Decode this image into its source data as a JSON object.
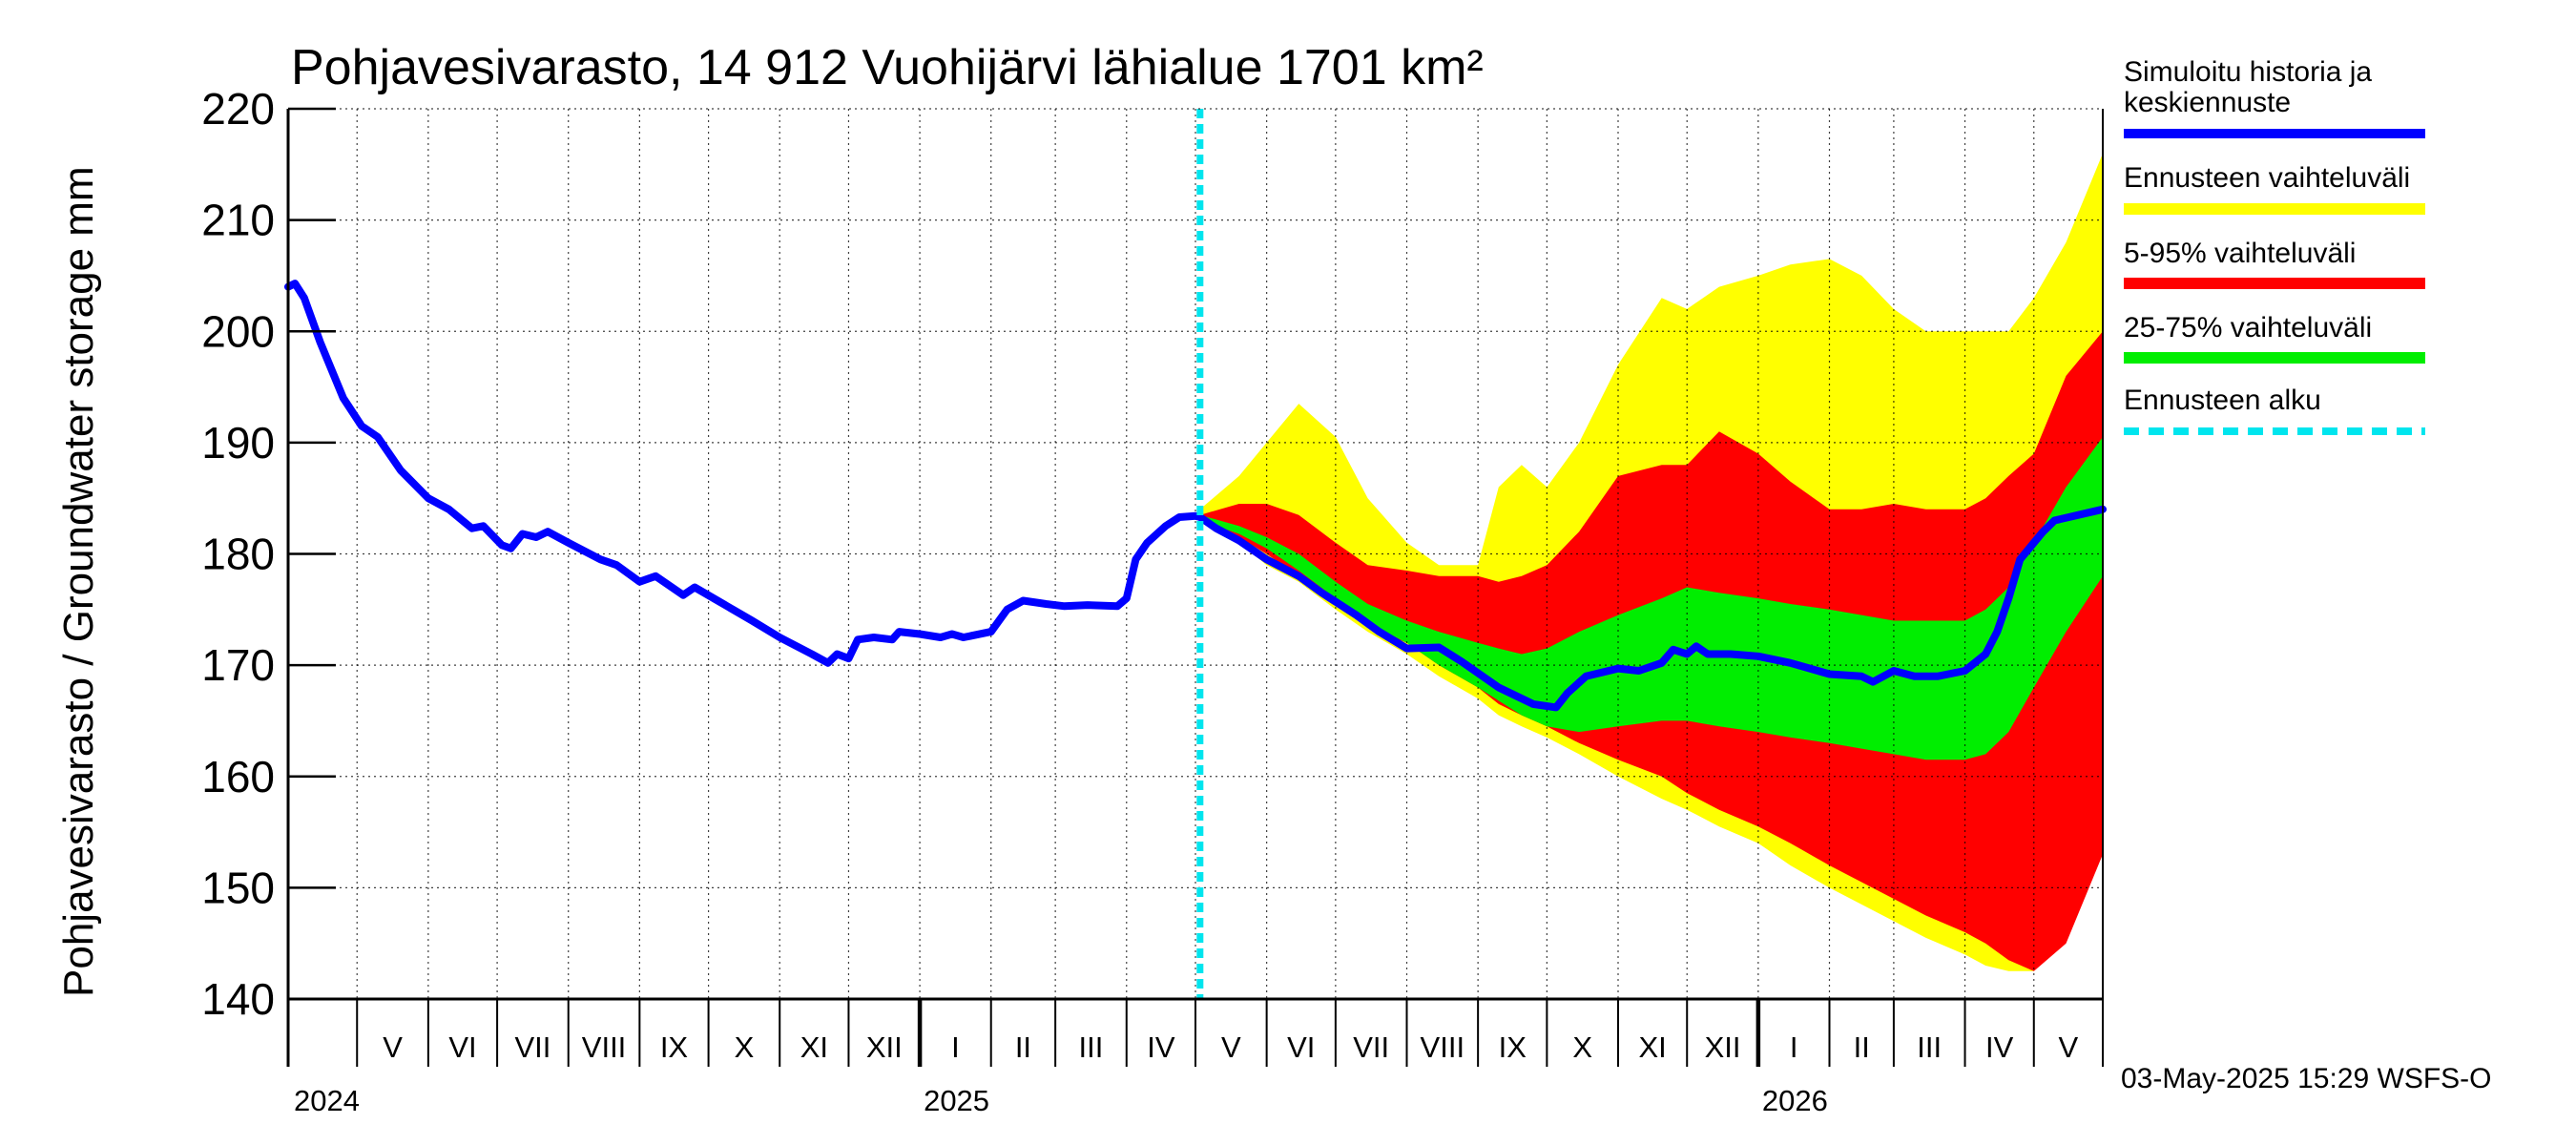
{
  "chart_data": {
    "type": "area",
    "title": "Pohjavesivarasto, 14 912 Vuohijärvi lähialue 1701 km²",
    "ylabel": "Pohjavesivarasto / Groundwater storage   mm",
    "ylim": [
      140,
      220
    ],
    "yticks": [
      "140",
      "150",
      "160",
      "170",
      "180",
      "190",
      "200",
      "210",
      "220"
    ],
    "x_start": "2024-04-01",
    "x_end": "2026-05-31",
    "grid": true,
    "legend_position": "right",
    "months": [
      {
        "label": "V",
        "start": "2024-05-01"
      },
      {
        "label": "VI",
        "start": "2024-06-01"
      },
      {
        "label": "VII",
        "start": "2024-07-01"
      },
      {
        "label": "VIII",
        "start": "2024-08-01"
      },
      {
        "label": "IX",
        "start": "2024-09-01"
      },
      {
        "label": "X",
        "start": "2024-10-01"
      },
      {
        "label": "XI",
        "start": "2024-11-01"
      },
      {
        "label": "XII",
        "start": "2024-12-01"
      },
      {
        "label": "I",
        "start": "2025-01-01"
      },
      {
        "label": "II",
        "start": "2025-02-01"
      },
      {
        "label": "III",
        "start": "2025-03-01"
      },
      {
        "label": "IV",
        "start": "2025-04-01"
      },
      {
        "label": "V",
        "start": "2025-05-01"
      },
      {
        "label": "VI",
        "start": "2025-06-01"
      },
      {
        "label": "VII",
        "start": "2025-07-01"
      },
      {
        "label": "VIII",
        "start": "2025-08-01"
      },
      {
        "label": "IX",
        "start": "2025-09-01"
      },
      {
        "label": "X",
        "start": "2025-10-01"
      },
      {
        "label": "XI",
        "start": "2025-11-01"
      },
      {
        "label": "XII",
        "start": "2025-12-01"
      },
      {
        "label": "I",
        "start": "2026-01-01"
      },
      {
        "label": "II",
        "start": "2026-02-01"
      },
      {
        "label": "III",
        "start": "2026-03-01"
      },
      {
        "label": "IV",
        "start": "2026-04-01"
      },
      {
        "label": "V",
        "start": "2026-05-01"
      }
    ],
    "years": [
      {
        "label": "2024",
        "date": "2024-05-01"
      },
      {
        "label": "2025",
        "date": "2025-01-01"
      },
      {
        "label": "2026",
        "date": "2026-01-01"
      }
    ],
    "forecast_start": "2025-05-03",
    "series": [
      {
        "name": "Simuloitu historia ja keskiennuste",
        "color": "#0000ff",
        "points": [
          [
            "2024-04-01",
            204.0
          ],
          [
            "2024-04-04",
            204.3
          ],
          [
            "2024-04-08",
            203.0
          ],
          [
            "2024-04-15",
            199.0
          ],
          [
            "2024-04-25",
            194.0
          ],
          [
            "2024-05-03",
            191.5
          ],
          [
            "2024-05-10",
            190.5
          ],
          [
            "2024-05-20",
            187.5
          ],
          [
            "2024-06-01",
            185.0
          ],
          [
            "2024-06-10",
            184.0
          ],
          [
            "2024-06-20",
            182.3
          ],
          [
            "2024-06-25",
            182.5
          ],
          [
            "2024-07-03",
            180.8
          ],
          [
            "2024-07-07",
            180.5
          ],
          [
            "2024-07-12",
            181.8
          ],
          [
            "2024-07-18",
            181.5
          ],
          [
            "2024-07-23",
            182.0
          ],
          [
            "2024-08-01",
            181.0
          ],
          [
            "2024-08-15",
            179.5
          ],
          [
            "2024-08-22",
            179.0
          ],
          [
            "2024-09-01",
            177.5
          ],
          [
            "2024-09-08",
            178.0
          ],
          [
            "2024-09-20",
            176.3
          ],
          [
            "2024-09-25",
            177.0
          ],
          [
            "2024-10-05",
            175.8
          ],
          [
            "2024-10-20",
            174.0
          ],
          [
            "2024-11-01",
            172.5
          ],
          [
            "2024-11-15",
            171.0
          ],
          [
            "2024-11-22",
            170.2
          ],
          [
            "2024-11-26",
            171.0
          ],
          [
            "2024-12-01",
            170.6
          ],
          [
            "2024-12-05",
            172.3
          ],
          [
            "2024-12-12",
            172.5
          ],
          [
            "2024-12-20",
            172.3
          ],
          [
            "2024-12-23",
            173.0
          ],
          [
            "2025-01-01",
            172.8
          ],
          [
            "2025-01-10",
            172.5
          ],
          [
            "2025-01-15",
            172.8
          ],
          [
            "2025-01-20",
            172.5
          ],
          [
            "2025-02-01",
            173.0
          ],
          [
            "2025-02-08",
            175.0
          ],
          [
            "2025-02-15",
            175.8
          ],
          [
            "2025-02-25",
            175.5
          ],
          [
            "2025-03-05",
            175.3
          ],
          [
            "2025-03-15",
            175.4
          ],
          [
            "2025-03-28",
            175.3
          ],
          [
            "2025-04-01",
            176.0
          ],
          [
            "2025-04-05",
            179.5
          ],
          [
            "2025-04-10",
            181.0
          ],
          [
            "2025-04-18",
            182.5
          ],
          [
            "2025-04-24",
            183.3
          ],
          [
            "2025-05-01",
            183.4
          ],
          [
            "2025-05-03",
            183.3
          ],
          [
            "2025-05-10",
            182.3
          ],
          [
            "2025-05-20",
            181.2
          ],
          [
            "2025-06-01",
            179.5
          ],
          [
            "2025-06-15",
            178.0
          ],
          [
            "2025-06-25",
            176.5
          ],
          [
            "2025-07-10",
            174.5
          ],
          [
            "2025-07-20",
            173.0
          ],
          [
            "2025-08-01",
            171.5
          ],
          [
            "2025-08-15",
            171.6
          ],
          [
            "2025-08-25",
            170.3
          ],
          [
            "2025-09-10",
            168.0
          ],
          [
            "2025-09-25",
            166.5
          ],
          [
            "2025-10-05",
            166.2
          ],
          [
            "2025-10-10",
            167.5
          ],
          [
            "2025-10-18",
            169.0
          ],
          [
            "2025-11-01",
            169.7
          ],
          [
            "2025-11-10",
            169.5
          ],
          [
            "2025-11-20",
            170.2
          ],
          [
            "2025-11-25",
            171.4
          ],
          [
            "2025-12-01",
            171.0
          ],
          [
            "2025-12-05",
            171.7
          ],
          [
            "2025-12-10",
            171.0
          ],
          [
            "2025-12-20",
            171.0
          ],
          [
            "2026-01-01",
            170.8
          ],
          [
            "2026-01-15",
            170.2
          ],
          [
            "2026-02-01",
            169.2
          ],
          [
            "2026-02-15",
            169.0
          ],
          [
            "2026-02-20",
            168.5
          ],
          [
            "2026-03-01",
            169.5
          ],
          [
            "2026-03-10",
            169.0
          ],
          [
            "2026-03-20",
            169.0
          ],
          [
            "2026-04-01",
            169.5
          ],
          [
            "2026-04-10",
            171.0
          ],
          [
            "2026-04-15",
            173.0
          ],
          [
            "2026-04-20",
            176.0
          ],
          [
            "2026-04-25",
            179.5
          ],
          [
            "2026-05-05",
            182.0
          ],
          [
            "2026-05-10",
            183.0
          ],
          [
            "2026-05-31",
            184.0
          ]
        ]
      }
    ],
    "bands": [
      {
        "name": "Ennusteen vaihteluväli",
        "color": "#ffff00",
        "x": [
          "2025-05-03",
          "2025-05-20",
          "2025-06-01",
          "2025-06-15",
          "2025-07-01",
          "2025-07-15",
          "2025-08-01",
          "2025-08-15",
          "2025-09-01",
          "2025-09-10",
          "2025-09-20",
          "2025-10-01",
          "2025-10-15",
          "2025-11-01",
          "2025-11-20",
          "2025-12-01",
          "2025-12-15",
          "2026-01-01",
          "2026-01-15",
          "2026-02-01",
          "2026-02-15",
          "2026-03-01",
          "2026-03-15",
          "2026-04-01",
          "2026-04-10",
          "2026-04-20",
          "2026-05-01",
          "2026-05-15",
          "2026-05-31"
        ],
        "upper": [
          184.0,
          187.0,
          190.0,
          193.5,
          190.5,
          185.0,
          181.0,
          179.0,
          179.0,
          186.0,
          188.0,
          186.0,
          190.0,
          197.0,
          203.0,
          202.0,
          204.0,
          205.0,
          206.0,
          206.5,
          205.0,
          202.0,
          200.0,
          200.0,
          200.0,
          200.0,
          203.0,
          208.0,
          216.0
        ],
        "lower": [
          183.0,
          181.0,
          179.0,
          177.5,
          175.0,
          173.0,
          171.0,
          169.0,
          167.0,
          165.5,
          164.5,
          163.5,
          162.0,
          160.0,
          158.0,
          157.0,
          155.5,
          154.0,
          152.0,
          150.0,
          148.5,
          147.0,
          145.5,
          144.0,
          143.0,
          142.5,
          142.5,
          146.0,
          153.0
        ]
      },
      {
        "name": "5-95% vaihteluväli",
        "color": "#ff0000",
        "x": [
          "2025-05-03",
          "2025-05-20",
          "2025-06-01",
          "2025-06-15",
          "2025-07-01",
          "2025-07-15",
          "2025-08-01",
          "2025-08-15",
          "2025-09-01",
          "2025-09-10",
          "2025-09-20",
          "2025-10-01",
          "2025-10-15",
          "2025-11-01",
          "2025-11-20",
          "2025-12-01",
          "2025-12-15",
          "2026-01-01",
          "2026-01-15",
          "2026-02-01",
          "2026-02-15",
          "2026-03-01",
          "2026-03-15",
          "2026-04-01",
          "2026-04-10",
          "2026-04-20",
          "2026-05-01",
          "2026-05-15",
          "2026-05-31"
        ],
        "upper": [
          183.5,
          184.5,
          184.5,
          183.5,
          181.0,
          179.0,
          178.5,
          178.0,
          178.0,
          177.5,
          178.0,
          179.0,
          182.0,
          187.0,
          188.0,
          188.0,
          191.0,
          189.0,
          186.5,
          184.0,
          184.0,
          184.5,
          184.0,
          184.0,
          185.0,
          187.0,
          189.0,
          196.0,
          200.0
        ],
        "lower": [
          183.0,
          181.5,
          180.0,
          178.0,
          175.5,
          173.5,
          172.0,
          170.0,
          168.0,
          166.5,
          165.5,
          164.5,
          163.0,
          161.5,
          160.0,
          158.5,
          157.0,
          155.5,
          154.0,
          152.0,
          150.5,
          149.0,
          147.5,
          146.0,
          145.0,
          143.5,
          142.5,
          145.0,
          153.0
        ]
      },
      {
        "name": "25-75% vaihteluväli",
        "color": "#00ee00",
        "x": [
          "2025-05-03",
          "2025-05-20",
          "2025-06-01",
          "2025-06-15",
          "2025-07-01",
          "2025-07-15",
          "2025-08-01",
          "2025-08-15",
          "2025-09-01",
          "2025-09-10",
          "2025-09-20",
          "2025-10-01",
          "2025-10-15",
          "2025-11-01",
          "2025-11-20",
          "2025-12-01",
          "2025-12-15",
          "2026-01-01",
          "2026-01-15",
          "2026-02-01",
          "2026-02-15",
          "2026-03-01",
          "2026-03-15",
          "2026-04-01",
          "2026-04-10",
          "2026-04-20",
          "2026-05-01",
          "2026-05-15",
          "2026-05-31"
        ],
        "upper": [
          183.5,
          182.5,
          181.5,
          180.0,
          177.5,
          175.5,
          174.0,
          173.0,
          172.0,
          171.5,
          171.0,
          171.5,
          173.0,
          174.5,
          176.0,
          177.0,
          176.5,
          176.0,
          175.5,
          175.0,
          174.5,
          174.0,
          174.0,
          174.0,
          175.0,
          177.0,
          181.0,
          186.0,
          190.5
        ],
        "lower": [
          183.0,
          181.8,
          180.5,
          178.5,
          176.0,
          173.8,
          172.0,
          170.0,
          168.0,
          166.8,
          165.5,
          164.5,
          164.0,
          164.5,
          165.0,
          165.0,
          164.5,
          164.0,
          163.5,
          163.0,
          162.5,
          162.0,
          161.5,
          161.5,
          162.0,
          164.0,
          168.0,
          173.0,
          178.0
        ]
      }
    ],
    "legend": [
      {
        "label": "Simuloitu historia ja keskiennuste",
        "color": "#0000ff",
        "style": "solid"
      },
      {
        "label": "Ennusteen vaihteluväli",
        "color": "#ffff00",
        "style": "solid"
      },
      {
        "label": "5-95% vaihteluväli",
        "color": "#ff0000",
        "style": "solid"
      },
      {
        "label": "25-75% vaihteluväli",
        "color": "#00ee00",
        "style": "solid"
      },
      {
        "label": "Ennusteen alku",
        "color": "#00e5ee",
        "style": "dashed"
      }
    ],
    "footer": "03-May-2025 15:29 WSFS-O"
  },
  "legend_lines": {
    "simulated_line1": "Simuloitu historia ja",
    "simulated_line2": "keskiennuste",
    "range": "Ennusteen vaihteluväli",
    "p5_95": "5-95% vaihteluväli",
    "p25_75": "25-75% vaihteluväli",
    "forecast_start": "Ennusteen alku"
  }
}
